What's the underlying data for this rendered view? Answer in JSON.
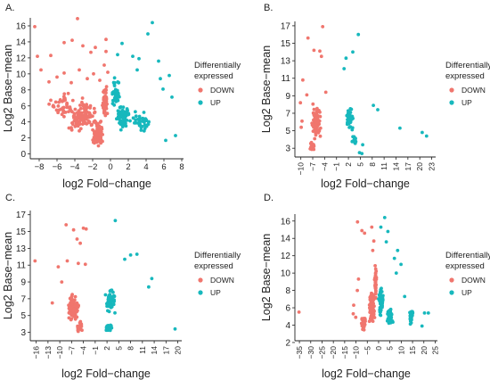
{
  "colors": {
    "down": "#F0766E",
    "up": "#17B8BD",
    "axis": "#222222",
    "text": "#222222"
  },
  "chart_data": [
    {
      "panel_label": "A.",
      "type": "scatter",
      "xlabel": "log2 Fold−change",
      "ylabel": "Log2 Base−mean",
      "xlim": [
        -9,
        8.2
      ],
      "ylim": [
        -0.6,
        17
      ],
      "xticks": [
        -8,
        -6,
        -4,
        -2,
        0,
        2,
        4,
        6,
        8
      ],
      "yticks": [
        0,
        2,
        4,
        6,
        8,
        10,
        12,
        14,
        16
      ],
      "tick_rotate": false,
      "legend": {
        "title": [
          "Differentially",
          "expressed"
        ],
        "entries": [
          "DOWN",
          "UP"
        ]
      },
      "seed": 11,
      "series": [
        {
          "name": "DOWN",
          "color_key": "down",
          "points": [
            [
              -8.5,
              15.9
            ],
            [
              -8.2,
              12.2
            ],
            [
              -6.7,
              12.3
            ],
            [
              -5.2,
              13.9
            ],
            [
              -4.3,
              14.2
            ],
            [
              -3.7,
              16.9
            ],
            [
              -3.1,
              13.5
            ],
            [
              -2.2,
              12.7
            ],
            [
              -1.7,
              13.3
            ],
            [
              -0.5,
              14.3
            ],
            [
              -0.5,
              12.8
            ],
            [
              -7.8,
              10.5
            ],
            [
              -6.9,
              9.0
            ],
            [
              -6.0,
              9.6
            ],
            [
              -5.2,
              10.1
            ],
            [
              -4.4,
              8.9
            ],
            [
              -3.5,
              10.5
            ],
            [
              -2.6,
              9.4
            ],
            [
              -1.9,
              10.0
            ],
            [
              -1.2,
              9.2
            ],
            [
              -0.7,
              11.1
            ],
            [
              -0.3,
              10.2
            ]
          ],
          "clusters": [
            [
              -3.2,
              4.5,
              2.2,
              2.6,
              110
            ],
            [
              -1.4,
              2.4,
              0.8,
              2.0,
              80
            ],
            [
              -0.6,
              6.5,
              0.4,
              2.6,
              60
            ],
            [
              -5.5,
              6.0,
              2.2,
              2.0,
              40
            ]
          ]
        },
        {
          "name": "UP",
          "color_key": "up",
          "points": [
            [
              4.7,
              16.4
            ],
            [
              4.2,
              15.0
            ],
            [
              1.3,
              13.8
            ],
            [
              2.5,
              12.2
            ],
            [
              3.2,
              11.9
            ],
            [
              5.4,
              11.6
            ],
            [
              6.6,
              9.8
            ],
            [
              0.8,
              12.4
            ],
            [
              3.0,
              10.5
            ],
            [
              5.6,
              9.4
            ],
            [
              5.9,
              8.1
            ],
            [
              6.9,
              7.1
            ],
            [
              6.2,
              1.7
            ],
            [
              7.3,
              2.3
            ]
          ],
          "clusters": [
            [
              1.4,
              4.6,
              1.0,
              2.0,
              60
            ],
            [
              0.6,
              7.5,
              0.5,
              2.4,
              35
            ],
            [
              3.4,
              3.9,
              1.4,
              1.8,
              35
            ]
          ]
        }
      ]
    },
    {
      "panel_label": "B.",
      "type": "scatter",
      "xlabel": "log2 Fold−change",
      "ylabel": "Log2 Base−mean",
      "xlim": [
        -11.5,
        24
      ],
      "ylim": [
        2,
        17.5
      ],
      "xticks": [
        -10,
        -7,
        -4,
        -1,
        2,
        5,
        8,
        11,
        14,
        17,
        20,
        23
      ],
      "yticks": [
        3,
        5,
        7,
        9,
        11,
        13,
        15,
        17
      ],
      "tick_rotate": true,
      "legend": {
        "title": [
          "Differentially",
          "expressed"
        ],
        "entries": [
          "DOWN",
          "UP"
        ]
      },
      "seed": 23,
      "series": [
        {
          "name": "DOWN",
          "color_key": "down",
          "points": [
            [
              -8.2,
              15.6
            ],
            [
              -4.5,
              16.9
            ],
            [
              -6.7,
              14.2
            ],
            [
              -5.2,
              14.1
            ],
            [
              -4.8,
              13.5
            ],
            [
              -9.5,
              10.8
            ],
            [
              -3.7,
              9.4
            ],
            [
              -10.1,
              8.2
            ],
            [
              -8.5,
              9.1
            ],
            [
              -9.7,
              6.1
            ],
            [
              -9.9,
              5.4
            ]
          ],
          "clusters": [
            [
              -6.0,
              6.0,
              1.6,
              2.2,
              90
            ],
            [
              -7.2,
              3.2,
              0.8,
              0.8,
              20
            ]
          ]
        },
        {
          "name": "UP",
          "color_key": "up",
          "points": [
            [
              4.5,
              16.0
            ],
            [
              3.1,
              14.0
            ],
            [
              1.4,
              13.3
            ],
            [
              0.9,
              12.1
            ],
            [
              8.3,
              7.9
            ],
            [
              9.4,
              7.4
            ],
            [
              15.0,
              5.3
            ],
            [
              20.6,
              4.8
            ],
            [
              21.7,
              4.4
            ],
            [
              5.6,
              3.4
            ],
            [
              4.8,
              2.5
            ],
            [
              5.4,
              2.4
            ]
          ],
          "clusters": [
            [
              2.3,
              6.3,
              1.0,
              1.8,
              45
            ],
            [
              3.4,
              4.0,
              1.0,
              0.7,
              20
            ]
          ]
        }
      ]
    },
    {
      "panel_label": "C.",
      "type": "scatter",
      "xlabel": "log2 Fold−change",
      "ylabel": "Log2 Base−mean",
      "xlim": [
        -17.5,
        21
      ],
      "ylim": [
        2,
        17.5
      ],
      "xticks": [
        -16,
        -13,
        -10,
        -7,
        -4,
        -1,
        2,
        5,
        8,
        11,
        14,
        17,
        20
      ],
      "yticks": [
        3,
        5,
        7,
        9,
        11,
        13,
        15,
        17
      ],
      "tick_rotate": true,
      "legend": {
        "title": [
          "Differentially",
          "expressed"
        ],
        "entries": [
          "DOWN",
          "UP"
        ]
      },
      "seed": 37,
      "series": [
        {
          "name": "DOWN",
          "color_key": "down",
          "points": [
            [
              -16.3,
              11.5
            ],
            [
              -8.4,
              15.8
            ],
            [
              -6.5,
              15.2
            ],
            [
              -4.0,
              15.4
            ],
            [
              -3.3,
              15.3
            ],
            [
              -5.6,
              14.1
            ],
            [
              -4.8,
              13.6
            ],
            [
              -11.9,
              6.5
            ],
            [
              -8.1,
              11.5
            ],
            [
              -5.3,
              11.2
            ],
            [
              -3.5,
              11.1
            ],
            [
              -9.5,
              9.0
            ],
            [
              -10.4,
              10.8
            ]
          ],
          "clusters": [
            [
              -6.6,
              6.0,
              1.8,
              2.0,
              90
            ],
            [
              -5.0,
              3.6,
              1.0,
              0.8,
              25
            ]
          ]
        },
        {
          "name": "UP",
          "color_key": "up",
          "points": [
            [
              4.1,
              16.3
            ],
            [
              8.0,
              12.2
            ],
            [
              9.6,
              12.3
            ],
            [
              6.5,
              11.7
            ],
            [
              13.4,
              9.4
            ],
            [
              12.6,
              8.4
            ],
            [
              19.3,
              3.4
            ]
          ],
          "clusters": [
            [
              2.8,
              6.7,
              1.4,
              1.9,
              55
            ],
            [
              2.5,
              3.6,
              1.2,
              0.7,
              20
            ]
          ]
        }
      ]
    },
    {
      "panel_label": "D.",
      "type": "scatter",
      "xlabel": "log2 Fold−change",
      "ylabel": "Log2 Base−mean",
      "xlim": [
        -37,
        26
      ],
      "ylim": [
        2.2,
        16.8
      ],
      "xticks": [
        -35,
        -30,
        -25,
        -20,
        -15,
        -10,
        -5,
        0,
        5,
        10,
        15,
        20,
        25
      ],
      "yticks": [
        2,
        4,
        6,
        8,
        10,
        12,
        14,
        16
      ],
      "tick_rotate": true,
      "legend": {
        "title": [
          "Differentially",
          "expressed"
        ],
        "entries": [
          "DOWN",
          "UP"
        ]
      },
      "seed": 53,
      "series": [
        {
          "name": "DOWN",
          "color_key": "down",
          "points": [
            [
              -35.2,
              5.5
            ],
            [
              -9.3,
              15.9
            ],
            [
              -7.4,
              14.9
            ],
            [
              -6.2,
              14.6
            ],
            [
              -3.0,
              15.3
            ],
            [
              -2.1,
              13.7
            ],
            [
              -2.6,
              12.6
            ],
            [
              -9.4,
              8.0
            ],
            [
              -11.0,
              6.3
            ],
            [
              -10.1,
              4.9
            ],
            [
              -11.2,
              5.3
            ],
            [
              -8.9,
              9.3
            ]
          ],
          "clusters": [
            [
              -3.0,
              6.2,
              1.5,
              2.2,
              110
            ],
            [
              -1.4,
              9.0,
              0.6,
              2.5,
              40
            ],
            [
              -6.5,
              4.3,
              1.5,
              1.2,
              30
            ]
          ]
        },
        {
          "name": "UP",
          "color_key": "up",
          "points": [
            [
              2.7,
              16.4
            ],
            [
              1.0,
              15.3
            ],
            [
              4.1,
              14.8
            ],
            [
              3.4,
              13.6
            ],
            [
              8.4,
              12.6
            ],
            [
              7.0,
              11.7
            ],
            [
              9.9,
              11.0
            ],
            [
              7.8,
              10.0
            ],
            [
              11.5,
              7.3
            ],
            [
              20.3,
              5.4
            ],
            [
              22.0,
              5.4
            ],
            [
              19.2,
              3.9
            ]
          ],
          "clusters": [
            [
              1.0,
              6.8,
              1.1,
              2.0,
              70
            ],
            [
              5.0,
              5.0,
              1.8,
              1.4,
              30
            ],
            [
              14.3,
              5.0,
              1.2,
              1.3,
              25
            ]
          ]
        }
      ]
    }
  ]
}
